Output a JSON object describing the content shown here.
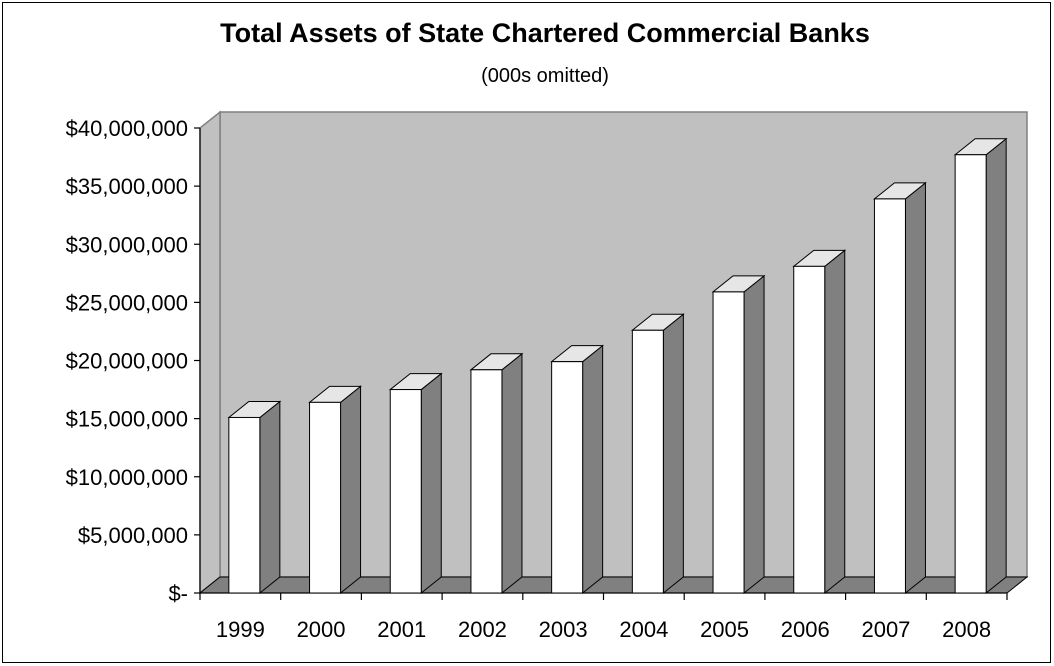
{
  "chart_data": {
    "type": "bar",
    "title": "Total Assets of State Chartered Commercial Banks",
    "subtitle": "(000s omitted)",
    "categories": [
      "1999",
      "2000",
      "2001",
      "2002",
      "2003",
      "2004",
      "2005",
      "2006",
      "2007",
      "2008"
    ],
    "values": [
      15100000,
      16400000,
      17500000,
      19200000,
      19900000,
      22600000,
      25900000,
      28100000,
      33900000,
      37700000
    ],
    "ylim": [
      0,
      40000000
    ],
    "yticks": [
      0,
      5000000,
      10000000,
      15000000,
      20000000,
      25000000,
      30000000,
      35000000,
      40000000
    ],
    "ytick_labels": [
      "$-",
      "$5,000,000",
      "$10,000,000",
      "$15,000,000",
      "$20,000,000",
      "$25,000,000",
      "$30,000,000",
      "$35,000,000",
      "$40,000,000"
    ],
    "grid": false,
    "legend": "none",
    "style": "3d-column",
    "colors": {
      "wall": "#c0c0c0",
      "floor": "#808080",
      "bar_front": "#ffffff",
      "bar_side": "#808080",
      "bar_top": "#e6e6e6"
    }
  }
}
